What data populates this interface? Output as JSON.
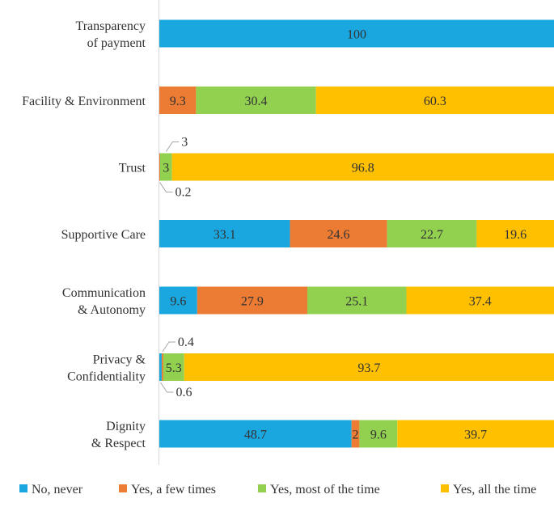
{
  "chart_data": {
    "type": "bar",
    "orientation": "horizontal",
    "stacked": "percent",
    "xlim": [
      0,
      100
    ],
    "categories": [
      [
        "Transparency",
        "of payment"
      ],
      [
        "Facility & Environment"
      ],
      [
        "Trust"
      ],
      [
        "Supportive Care"
      ],
      [
        "Communication",
        "& Autonomy"
      ],
      [
        "Privacy &",
        "Confidentiality"
      ],
      [
        "Dignity",
        "& Respect"
      ]
    ],
    "series": [
      {
        "name": "No, never",
        "color": "#1aa7e0",
        "values": [
          100,
          0,
          0,
          33.1,
          9.6,
          0.6,
          48.7
        ]
      },
      {
        "name": "Yes, a few times",
        "color": "#ec7b34",
        "values": [
          0,
          9.3,
          0.2,
          24.6,
          27.9,
          0.4,
          2
        ]
      },
      {
        "name": "Yes, most of the time",
        "color": "#92d050",
        "values": [
          0,
          30.4,
          3,
          22.7,
          25.1,
          5.3,
          9.6
        ]
      },
      {
        "name": "Yes, all the time",
        "color": "#ffc000",
        "values": [
          0,
          60.3,
          96.8,
          19.6,
          37.4,
          93.7,
          39.7
        ]
      }
    ],
    "labels": [
      [
        "100",
        "",
        "",
        ""
      ],
      [
        "",
        "9.3",
        "30.4",
        "60.3"
      ],
      [
        "",
        "0.2",
        "3",
        "96.8"
      ],
      [
        "33.1",
        "24.6",
        "22.7",
        "19.6"
      ],
      [
        "9.6",
        "27.9",
        "25.1",
        "37.4"
      ],
      [
        "0.6",
        "0.4",
        "5.3",
        "93.7"
      ],
      [
        "48.7",
        "2",
        "9.6",
        "39.7"
      ]
    ],
    "callout_labels": [
      {
        "category": 2,
        "series": 2,
        "text": "3",
        "side": "above"
      },
      {
        "category": 2,
        "series": 1,
        "text": "0.2",
        "side": "below"
      },
      {
        "category": 5,
        "series": 1,
        "text": "0.4",
        "side": "above"
      },
      {
        "category": 5,
        "series": 0,
        "text": "0.6",
        "side": "below"
      }
    ],
    "legend_position": "bottom",
    "title": "",
    "xlabel": "",
    "ylabel": ""
  }
}
